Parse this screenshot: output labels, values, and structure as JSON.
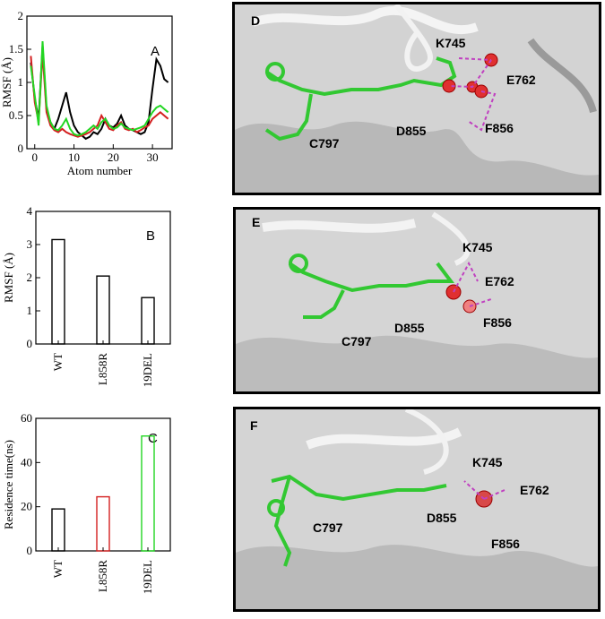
{
  "chart_data": [
    {
      "panel": "A",
      "type": "line",
      "xlabel": "Atom number",
      "ylabel": "RMSF (Å)",
      "xlim": [
        -2,
        35
      ],
      "ylim": [
        0,
        2
      ],
      "xticks": [
        "0",
        "10",
        "20",
        "30"
      ],
      "yticks": [
        "0",
        "0.5",
        "1",
        "1.5",
        "2"
      ],
      "colors": [
        "#000000",
        "#d42020",
        "#22d622"
      ],
      "series": [
        {
          "values": [
            [
              -1,
              1.3
            ],
            [
              0,
              0.75
            ],
            [
              1,
              0.45
            ],
            [
              2,
              1.55
            ],
            [
              3,
              0.6
            ],
            [
              4,
              0.4
            ],
            [
              5,
              0.3
            ],
            [
              6,
              0.45
            ],
            [
              7,
              0.65
            ],
            [
              8,
              0.85
            ],
            [
              9,
              0.55
            ],
            [
              10,
              0.35
            ],
            [
              11,
              0.25
            ],
            [
              12,
              0.2
            ],
            [
              13,
              0.15
            ],
            [
              14,
              0.18
            ],
            [
              15,
              0.25
            ],
            [
              16,
              0.22
            ],
            [
              17,
              0.3
            ],
            [
              18,
              0.45
            ],
            [
              19,
              0.35
            ],
            [
              20,
              0.32
            ],
            [
              21,
              0.38
            ],
            [
              22,
              0.5
            ],
            [
              23,
              0.35
            ],
            [
              24,
              0.3
            ],
            [
              25,
              0.28
            ],
            [
              26,
              0.25
            ],
            [
              27,
              0.22
            ],
            [
              28,
              0.25
            ],
            [
              29,
              0.4
            ],
            [
              30,
              0.9
            ],
            [
              31,
              1.35
            ],
            [
              32,
              1.25
            ],
            [
              33,
              1.05
            ],
            [
              34,
              1.0
            ]
          ]
        },
        {
          "values": [
            [
              -1,
              1.4
            ],
            [
              0,
              0.7
            ],
            [
              1,
              0.4
            ],
            [
              2,
              1.45
            ],
            [
              3,
              0.55
            ],
            [
              4,
              0.35
            ],
            [
              5,
              0.28
            ],
            [
              6,
              0.25
            ],
            [
              7,
              0.3
            ],
            [
              8,
              0.25
            ],
            [
              9,
              0.22
            ],
            [
              10,
              0.2
            ],
            [
              11,
              0.18
            ],
            [
              12,
              0.2
            ],
            [
              13,
              0.22
            ],
            [
              14,
              0.25
            ],
            [
              15,
              0.3
            ],
            [
              16,
              0.35
            ],
            [
              17,
              0.5
            ],
            [
              18,
              0.4
            ],
            [
              19,
              0.3
            ],
            [
              20,
              0.28
            ],
            [
              21,
              0.35
            ],
            [
              22,
              0.4
            ],
            [
              23,
              0.3
            ],
            [
              24,
              0.28
            ],
            [
              25,
              0.3
            ],
            [
              26,
              0.25
            ],
            [
              27,
              0.28
            ],
            [
              28,
              0.32
            ],
            [
              29,
              0.35
            ],
            [
              30,
              0.45
            ],
            [
              31,
              0.5
            ],
            [
              32,
              0.55
            ],
            [
              33,
              0.5
            ],
            [
              34,
              0.45
            ]
          ]
        },
        {
          "values": [
            [
              -1,
              1.25
            ],
            [
              0,
              0.8
            ],
            [
              1,
              0.35
            ],
            [
              2,
              1.62
            ],
            [
              3,
              0.65
            ],
            [
              4,
              0.4
            ],
            [
              5,
              0.3
            ],
            [
              6,
              0.28
            ],
            [
              7,
              0.35
            ],
            [
              8,
              0.45
            ],
            [
              9,
              0.3
            ],
            [
              10,
              0.22
            ],
            [
              11,
              0.2
            ],
            [
              12,
              0.22
            ],
            [
              13,
              0.25
            ],
            [
              14,
              0.3
            ],
            [
              15,
              0.35
            ],
            [
              16,
              0.3
            ],
            [
              17,
              0.4
            ],
            [
              18,
              0.45
            ],
            [
              19,
              0.35
            ],
            [
              20,
              0.3
            ],
            [
              21,
              0.32
            ],
            [
              22,
              0.38
            ],
            [
              23,
              0.32
            ],
            [
              24,
              0.3
            ],
            [
              25,
              0.28
            ],
            [
              26,
              0.3
            ],
            [
              27,
              0.32
            ],
            [
              28,
              0.35
            ],
            [
              29,
              0.45
            ],
            [
              30,
              0.55
            ],
            [
              31,
              0.62
            ],
            [
              32,
              0.65
            ],
            [
              33,
              0.6
            ],
            [
              34,
              0.55
            ]
          ]
        }
      ]
    },
    {
      "panel": "B",
      "type": "bar",
      "ylabel": "RMSF (Å)",
      "categories": [
        "WT",
        "L858R",
        "19DEL"
      ],
      "values": [
        3.15,
        2.05,
        1.4
      ],
      "ylim": [
        0,
        4
      ],
      "yticks": [
        "0",
        "1",
        "2",
        "3",
        "4"
      ],
      "colors": [
        "#000000",
        "#000000",
        "#000000"
      ]
    },
    {
      "panel": "C",
      "type": "bar",
      "ylabel": "Residence time(ns)",
      "categories": [
        "WT",
        "L858R",
        "19DEL"
      ],
      "values": [
        19,
        24.5,
        52
      ],
      "ylim": [
        0,
        60
      ],
      "yticks": [
        "0",
        "20",
        "40",
        "60"
      ],
      "colors": [
        "#000000",
        "#d42020",
        "#22d622"
      ]
    }
  ],
  "structure_panels": [
    {
      "letter": "D",
      "labels": [
        "K745",
        "E762",
        "D855",
        "F856",
        "C797"
      ]
    },
    {
      "letter": "E",
      "labels": [
        "K745",
        "E762",
        "D855",
        "F856",
        "C797"
      ]
    },
    {
      "letter": "F",
      "labels": [
        "K745",
        "E762",
        "D855",
        "F856",
        "C797"
      ]
    }
  ]
}
